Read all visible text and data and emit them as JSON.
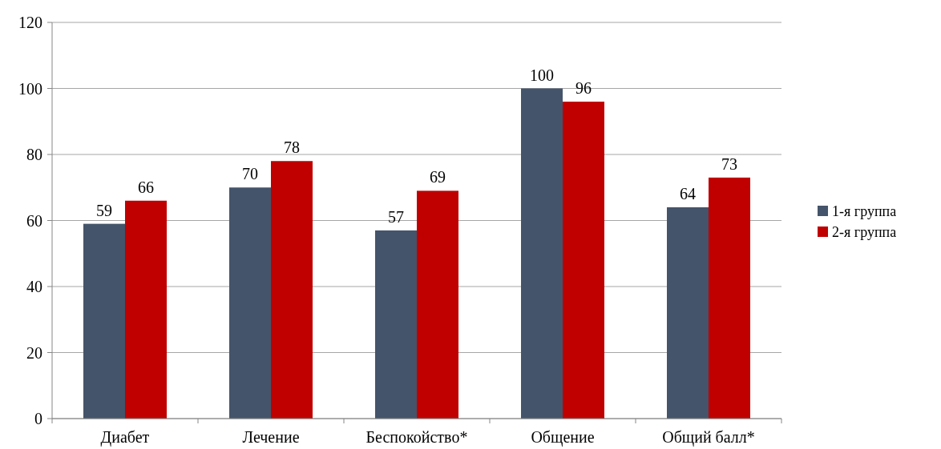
{
  "chart_data": {
    "type": "bar",
    "categories": [
      "Диабет",
      "Лечение",
      "Беспокойство*",
      "Общение",
      "Общий балл*"
    ],
    "series": [
      {
        "name": "1-я группа",
        "color": "#44546a",
        "values": [
          59,
          70,
          57,
          100,
          64
        ]
      },
      {
        "name": "2-я группа",
        "color": "#c00000",
        "values": [
          66,
          78,
          69,
          96,
          73
        ]
      }
    ],
    "ylim": [
      0,
      120
    ],
    "yticks": [
      0,
      20,
      40,
      60,
      80,
      100,
      120
    ],
    "grid": "y",
    "legend": "right",
    "data_labels": true
  }
}
